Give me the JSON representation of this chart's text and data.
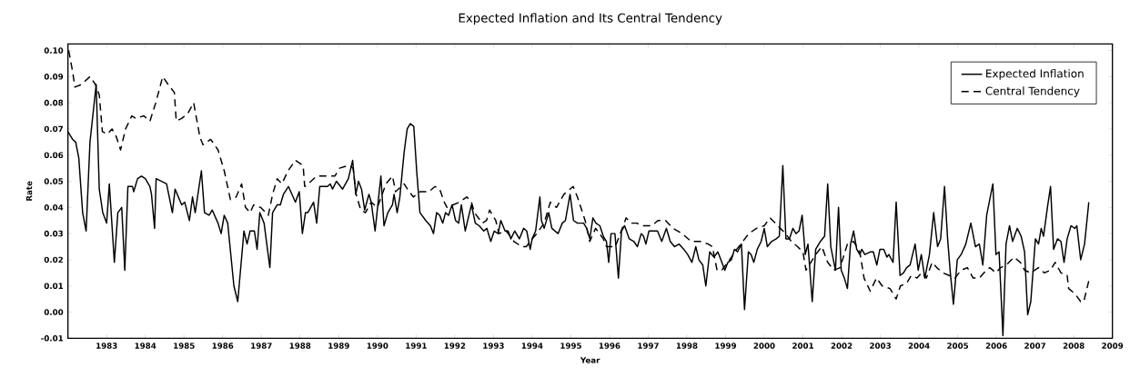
{
  "chart_data": {
    "type": "line",
    "title": "Expected Inflation and Its Central Tendency",
    "xlabel": "Year",
    "ylabel": "Rate",
    "xlim": [
      1982,
      2009
    ],
    "ylim": [
      -0.01,
      0.1025
    ],
    "xticks": [
      1983,
      1984,
      1985,
      1986,
      1987,
      1988,
      1989,
      1990,
      1991,
      1992,
      1993,
      1994,
      1995,
      1996,
      1997,
      1998,
      1999,
      2000,
      2001,
      2002,
      2003,
      2004,
      2005,
      2006,
      2007,
      2008,
      2009
    ],
    "yticks": [
      {
        "value": -0.01,
        "label": "-0.01"
      },
      {
        "value": 0,
        "label": "0.00"
      },
      0.01,
      0.02,
      0.03,
      0.04,
      0.05,
      0.06,
      0.07,
      0.08,
      0.09,
      {
        "value": 0.1,
        "label": "0.10"
      }
    ],
    "legend": "top right",
    "grid": false,
    "marker": "none",
    "series": [
      {
        "name": "Expected Inflation",
        "color": "#000000",
        "line_style": "solid",
        "x": [
          1982.0,
          1982.12,
          1982.2,
          1982.28,
          1982.38,
          1982.47,
          1982.57,
          1982.73,
          1982.81,
          1982.9,
          1983.0,
          1983.07,
          1983.2,
          1983.29,
          1983.39,
          1983.47,
          1983.55,
          1983.67,
          1983.7,
          1983.8,
          1983.9,
          1984.0,
          1984.12,
          1984.16,
          1984.24,
          1984.28,
          1984.55,
          1984.7,
          1984.77,
          1984.94,
          1985.02,
          1985.14,
          1985.22,
          1985.29,
          1985.45,
          1985.53,
          1985.65,
          1985.73,
          1985.88,
          1985.96,
          1986.04,
          1986.13,
          1986.29,
          1986.39,
          1986.55,
          1986.63,
          1986.71,
          1986.82,
          1986.89,
          1986.96,
          1987.07,
          1987.22,
          1987.29,
          1987.41,
          1987.49,
          1987.57,
          1987.7,
          1987.88,
          1987.98,
          1988.06,
          1988.14,
          1988.2,
          1988.35,
          1988.43,
          1988.51,
          1988.71,
          1988.78,
          1988.84,
          1988.94,
          1989.1,
          1989.25,
          1989.36,
          1989.44,
          1989.51,
          1989.59,
          1989.67,
          1989.78,
          1989.84,
          1989.94,
          1990.09,
          1990.17,
          1990.27,
          1990.39,
          1990.43,
          1990.51,
          1990.58,
          1990.69,
          1990.77,
          1990.85,
          1990.94,
          1991.02,
          1991.1,
          1991.25,
          1991.37,
          1991.45,
          1991.53,
          1991.61,
          1991.69,
          1991.76,
          1991.84,
          1991.93,
          1992.02,
          1992.1,
          1992.17,
          1992.27,
          1992.43,
          1992.53,
          1992.63,
          1992.75,
          1992.83,
          1992.93,
          1993.02,
          1993.12,
          1993.19,
          1993.3,
          1993.38,
          1993.45,
          1993.55,
          1993.67,
          1993.78,
          1993.86,
          1993.95,
          1994.0,
          1994.09,
          1994.2,
          1994.24,
          1994.31,
          1994.43,
          1994.51,
          1994.67,
          1994.78,
          1994.86,
          1994.98,
          1995.07,
          1995.17,
          1995.33,
          1995.41,
          1995.49,
          1995.57,
          1995.65,
          1995.75,
          1995.84,
          1995.92,
          1995.98,
          1996.04,
          1996.14,
          1996.23,
          1996.31,
          1996.39,
          1996.51,
          1996.63,
          1996.72,
          1996.82,
          1996.88,
          1996.94,
          1997.02,
          1997.13,
          1997.24,
          1997.35,
          1997.47,
          1997.57,
          1997.68,
          1997.8,
          1997.92,
          1998.02,
          1998.13,
          1998.23,
          1998.31,
          1998.41,
          1998.49,
          1998.59,
          1998.7,
          1998.8,
          1998.88,
          1998.98,
          1999.06,
          1999.15,
          1999.23,
          1999.31,
          1999.41,
          1999.49,
          1999.59,
          1999.66,
          1999.73,
          1999.82,
          1999.92,
          2000.0,
          2000.08,
          2000.19,
          2000.31,
          2000.39,
          2000.48,
          2000.56,
          2000.65,
          2000.74,
          2000.82,
          2000.9,
          2000.98,
          2001.06,
          2001.13,
          2001.24,
          2001.33,
          2001.45,
          2001.56,
          2001.64,
          2001.72,
          2001.8,
          2001.84,
          2001.92,
          2001.99,
          2002.07,
          2002.15,
          2002.23,
          2002.31,
          2002.39,
          2002.47,
          2002.52,
          2002.6,
          2002.74,
          2002.82,
          2002.91,
          2002.99,
          2003.09,
          2003.17,
          2003.22,
          2003.33,
          2003.41,
          2003.51,
          2003.6,
          2003.68,
          2003.77,
          2003.9,
          2003.98,
          2004.06,
          2004.15,
          2004.27,
          2004.38,
          2004.48,
          2004.56,
          2004.66,
          2004.74,
          2004.81,
          2004.89,
          2004.99,
          2005.09,
          2005.21,
          2005.34,
          2005.46,
          2005.56,
          2005.65,
          2005.75,
          2005.91,
          2005.99,
          2006.07,
          2006.17,
          2006.25,
          2006.34,
          2006.42,
          2006.54,
          2006.64,
          2006.73,
          2006.81,
          2006.89,
          2007.01,
          2007.09,
          2007.16,
          2007.22,
          2007.32,
          2007.4,
          2007.48,
          2007.58,
          2007.67,
          2007.75,
          2007.83,
          2007.93,
          2008.03,
          2008.08,
          2008.18,
          2008.28,
          2008.39
        ],
        "values": [
          0.069,
          0.066,
          0.065,
          0.059,
          0.038,
          0.031,
          0.065,
          0.087,
          0.047,
          0.038,
          0.034,
          0.049,
          0.019,
          0.038,
          0.04,
          0.016,
          0.048,
          0.048,
          0.046,
          0.051,
          0.052,
          0.051,
          0.048,
          0.045,
          0.032,
          0.051,
          0.049,
          0.038,
          0.047,
          0.041,
          0.042,
          0.035,
          0.044,
          0.038,
          0.054,
          0.038,
          0.037,
          0.039,
          0.034,
          0.03,
          0.037,
          0.034,
          0.01,
          0.004,
          0.031,
          0.026,
          0.031,
          0.031,
          0.024,
          0.038,
          0.034,
          0.017,
          0.038,
          0.041,
          0.041,
          0.045,
          0.048,
          0.042,
          0.046,
          0.03,
          0.038,
          0.038,
          0.042,
          0.034,
          0.048,
          0.048,
          0.049,
          0.047,
          0.05,
          0.047,
          0.051,
          0.058,
          0.045,
          0.05,
          0.047,
          0.039,
          0.045,
          0.042,
          0.031,
          0.052,
          0.033,
          0.038,
          0.041,
          0.045,
          0.038,
          0.044,
          0.061,
          0.07,
          0.072,
          0.071,
          0.053,
          0.038,
          0.035,
          0.033,
          0.03,
          0.038,
          0.037,
          0.034,
          0.038,
          0.037,
          0.041,
          0.035,
          0.034,
          0.041,
          0.031,
          0.041,
          0.034,
          0.033,
          0.031,
          0.032,
          0.027,
          0.031,
          0.03,
          0.035,
          0.031,
          0.031,
          0.028,
          0.031,
          0.028,
          0.032,
          0.031,
          0.024,
          0.028,
          0.031,
          0.044,
          0.035,
          0.032,
          0.038,
          0.032,
          0.03,
          0.034,
          0.035,
          0.045,
          0.035,
          0.034,
          0.034,
          0.032,
          0.028,
          0.036,
          0.034,
          0.033,
          0.029,
          0.027,
          0.019,
          0.03,
          0.03,
          0.013,
          0.031,
          0.033,
          0.028,
          0.027,
          0.025,
          0.03,
          0.029,
          0.026,
          0.031,
          0.031,
          0.031,
          0.027,
          0.032,
          0.027,
          0.025,
          0.026,
          0.024,
          0.022,
          0.019,
          0.025,
          0.02,
          0.018,
          0.01,
          0.023,
          0.021,
          0.023,
          0.02,
          0.016,
          0.019,
          0.02,
          0.024,
          0.023,
          0.026,
          0.001,
          0.023,
          0.022,
          0.019,
          0.024,
          0.027,
          0.032,
          0.025,
          0.027,
          0.028,
          0.029,
          0.056,
          0.028,
          0.028,
          0.032,
          0.03,
          0.031,
          0.037,
          0.022,
          0.026,
          0.004,
          0.024,
          0.027,
          0.029,
          0.049,
          0.025,
          0.019,
          0.016,
          0.04,
          0.016,
          0.013,
          0.009,
          0.026,
          0.031,
          0.024,
          0.022,
          0.024,
          0.022,
          0.023,
          0.023,
          0.018,
          0.024,
          0.024,
          0.021,
          0.022,
          0.019,
          0.042,
          0.014,
          0.015,
          0.017,
          0.018,
          0.026,
          0.016,
          0.022,
          0.013,
          0.022,
          0.038,
          0.025,
          0.028,
          0.048,
          0.028,
          0.015,
          0.003,
          0.02,
          0.022,
          0.026,
          0.034,
          0.025,
          0.026,
          0.018,
          0.037,
          0.049,
          0.022,
          0.023,
          -0.009,
          0.026,
          0.033,
          0.027,
          0.032,
          0.029,
          0.023,
          -0.001,
          0.004,
          0.028,
          0.026,
          0.032,
          0.029,
          0.04,
          0.048,
          0.024,
          0.028,
          0.027,
          0.019,
          0.028,
          0.033,
          0.032,
          0.033,
          0.02,
          0.026,
          0.042
        ]
      },
      {
        "name": "Central Tendency",
        "color": "#000000",
        "line_style": "dashed",
        "x": [
          1982.02,
          1982.12,
          1982.18,
          1982.35,
          1982.57,
          1982.71,
          1982.81,
          1982.89,
          1983.02,
          1983.14,
          1983.25,
          1983.36,
          1983.49,
          1983.65,
          1983.76,
          1983.96,
          1984.12,
          1984.27,
          1984.45,
          1984.59,
          1984.75,
          1984.8,
          1984.94,
          1985.1,
          1985.25,
          1985.41,
          1985.49,
          1985.69,
          1985.88,
          1986.04,
          1986.2,
          1986.35,
          1986.49,
          1986.59,
          1986.71,
          1986.8,
          1986.98,
          1987.18,
          1987.29,
          1987.41,
          1987.53,
          1987.69,
          1987.88,
          1988.08,
          1988.12,
          1988.21,
          1988.43,
          1988.67,
          1988.9,
          1989.02,
          1989.25,
          1989.37,
          1989.45,
          1989.57,
          1989.69,
          1989.84,
          1990.0,
          1990.22,
          1990.39,
          1990.47,
          1990.69,
          1990.82,
          1990.93,
          1991.1,
          1991.22,
          1991.33,
          1991.49,
          1991.61,
          1991.73,
          1991.8,
          1992.12,
          1992.31,
          1992.43,
          1992.51,
          1992.71,
          1992.82,
          1992.9,
          1993.06,
          1993.14,
          1993.33,
          1993.53,
          1993.73,
          1993.85,
          1994.0,
          1994.12,
          1994.31,
          1994.47,
          1994.63,
          1994.82,
          1995.06,
          1995.17,
          1995.37,
          1995.49,
          1995.64,
          1995.84,
          1995.92,
          1996.15,
          1996.43,
          1996.55,
          1996.7,
          1996.86,
          1997.1,
          1997.25,
          1997.45,
          1997.64,
          1997.88,
          1998.11,
          1998.35,
          1998.55,
          1998.66,
          1998.78,
          1998.9,
          1999.06,
          1999.29,
          1999.6,
          1999.8,
          2000.0,
          2000.15,
          2000.35,
          2000.55,
          2000.7,
          2000.86,
          2001.0,
          2001.08,
          2001.33,
          2001.49,
          2001.64,
          2001.8,
          2001.96,
          2002.15,
          2002.31,
          2002.47,
          2002.58,
          2002.74,
          2002.9,
          2003.05,
          2003.25,
          2003.41,
          2003.52,
          2003.68,
          2003.8,
          2003.95,
          2004.07,
          2004.19,
          2004.34,
          2004.46,
          2004.62,
          2004.78,
          2004.93,
          2005.09,
          2005.25,
          2005.4,
          2005.56,
          2005.68,
          2005.83,
          2005.99,
          2006.11,
          2006.26,
          2006.46,
          2006.62,
          2006.73,
          2006.89,
          2007.09,
          2007.24,
          2007.4,
          2007.52,
          2007.67,
          2007.83,
          2007.87,
          2008.03,
          2008.18,
          2008.26,
          2008.39
        ],
        "values": [
          0.1,
          0.092,
          0.086,
          0.087,
          0.09,
          0.087,
          0.083,
          0.069,
          0.068,
          0.07,
          0.067,
          0.062,
          0.07,
          0.075,
          0.074,
          0.075,
          0.073,
          0.08,
          0.09,
          0.087,
          0.084,
          0.073,
          0.074,
          0.076,
          0.08,
          0.067,
          0.064,
          0.066,
          0.062,
          0.054,
          0.043,
          0.044,
          0.049,
          0.04,
          0.038,
          0.041,
          0.04,
          0.037,
          0.045,
          0.051,
          0.049,
          0.054,
          0.058,
          0.056,
          0.048,
          0.049,
          0.052,
          0.052,
          0.052,
          0.055,
          0.056,
          0.055,
          0.045,
          0.039,
          0.038,
          0.042,
          0.04,
          0.049,
          0.052,
          0.046,
          0.049,
          0.046,
          0.044,
          0.046,
          0.046,
          0.046,
          0.048,
          0.047,
          0.042,
          0.04,
          0.042,
          0.044,
          0.042,
          0.038,
          0.034,
          0.035,
          0.039,
          0.035,
          0.03,
          0.031,
          0.027,
          0.025,
          0.025,
          0.028,
          0.03,
          0.034,
          0.042,
          0.04,
          0.045,
          0.048,
          0.044,
          0.035,
          0.027,
          0.032,
          0.028,
          0.025,
          0.025,
          0.036,
          0.034,
          0.034,
          0.033,
          0.033,
          0.035,
          0.035,
          0.032,
          0.03,
          0.027,
          0.027,
          0.026,
          0.025,
          0.016,
          0.016,
          0.019,
          0.024,
          0.03,
          0.032,
          0.033,
          0.036,
          0.033,
          0.03,
          0.027,
          0.025,
          0.023,
          0.016,
          0.022,
          0.025,
          0.019,
          0.016,
          0.017,
          0.026,
          0.027,
          0.023,
          0.013,
          0.008,
          0.013,
          0.01,
          0.009,
          0.005,
          0.01,
          0.011,
          0.014,
          0.013,
          0.015,
          0.013,
          0.019,
          0.017,
          0.015,
          0.014,
          0.013,
          0.016,
          0.017,
          0.013,
          0.013,
          0.015,
          0.017,
          0.015,
          0.017,
          0.018,
          0.021,
          0.019,
          0.016,
          0.015,
          0.017,
          0.015,
          0.016,
          0.019,
          0.015,
          0.014,
          0.009,
          0.007,
          0.004,
          0.004,
          0.012
        ]
      }
    ]
  }
}
